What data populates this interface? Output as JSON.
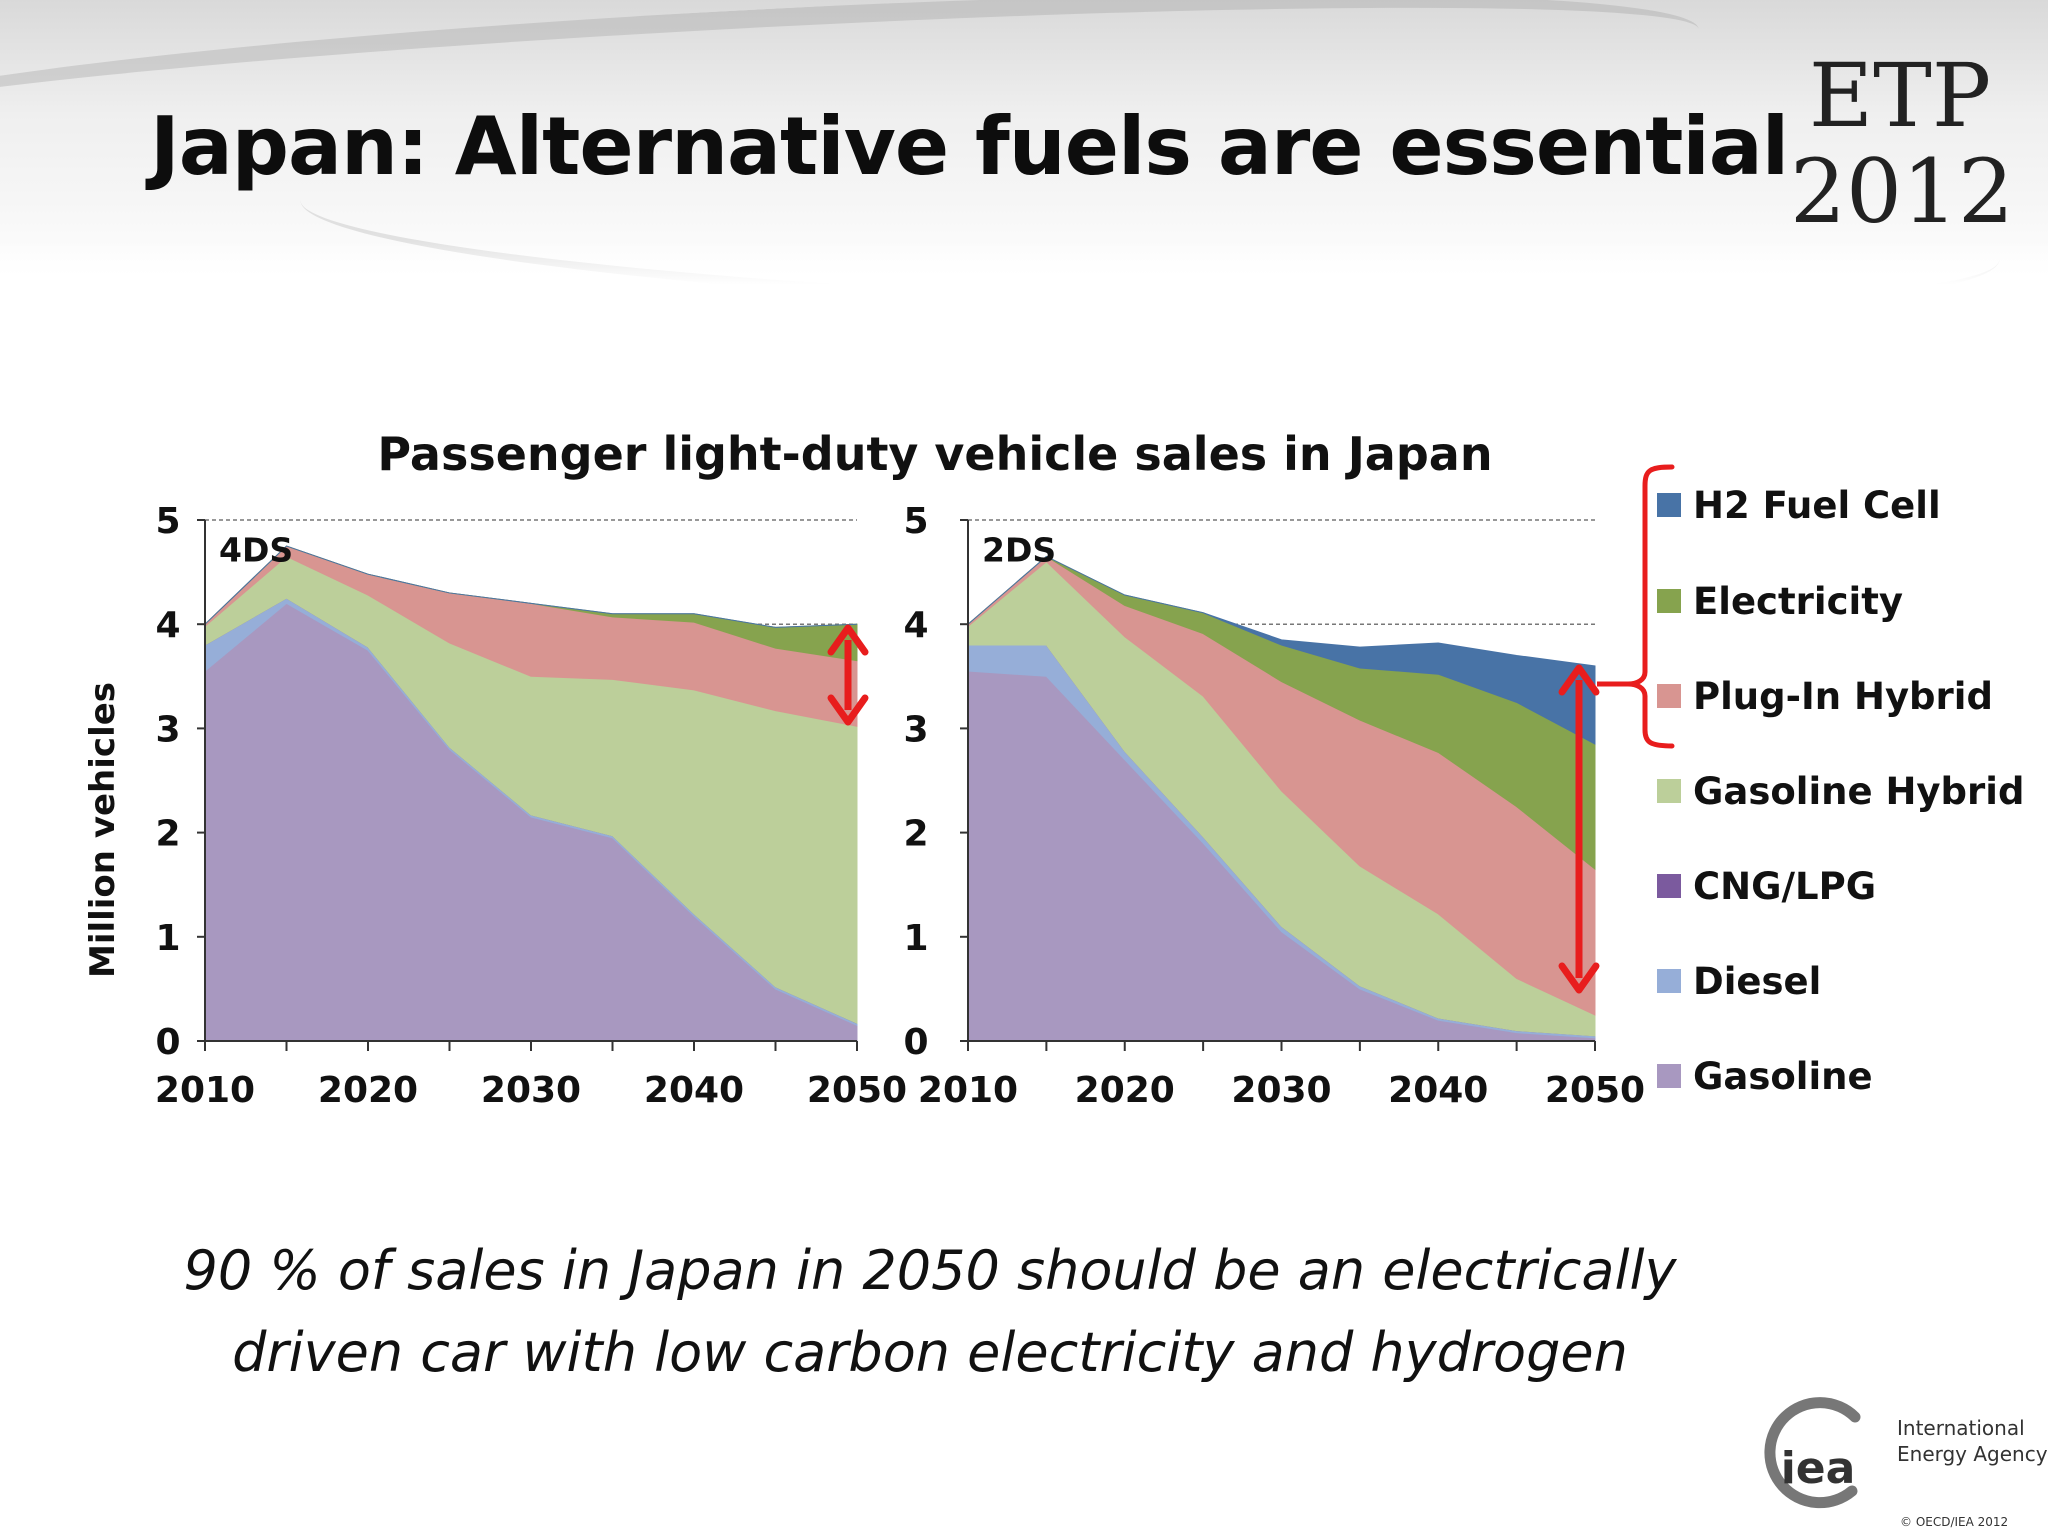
{
  "slide": {
    "title": "Japan: Alternative fuels are essential",
    "etp_line1": "ETP",
    "etp_line2": "2012",
    "subtitle_line1": "90 % of sales in Japan in 2050 should be an electrically",
    "subtitle_line2": "driven car with low carbon electricity and hydrogen",
    "logo_text": "iea",
    "agency_line1": "International",
    "agency_line2": "Energy Agency",
    "copyright": "© OECD/IEA 2012"
  },
  "colors": {
    "Gasoline": "#a898c0",
    "Diesel": "#96aed8",
    "CNG/LPG": "#7b5a9e",
    "Gasoline Hybrid": "#bccf9a",
    "Plug-In Hybrid": "#d89591",
    "Electricity": "#86a34e",
    "H2 Fuel Cell": "#4873a6",
    "arrow": "#e81d1d"
  },
  "chart_data": {
    "type": "area",
    "title": "Passenger light-duty vehicle sales in Japan",
    "ylabel": "Million vehicles",
    "xlabel": "",
    "ylim": [
      0,
      5
    ],
    "xlim": [
      2010,
      2050
    ],
    "yticks": [
      0,
      1,
      2,
      3,
      4,
      5
    ],
    "xticks": [
      2010,
      2020,
      2030,
      2040,
      2050
    ],
    "stacked": true,
    "legend_position": "right",
    "legend": [
      "H2 Fuel Cell",
      "Electricity",
      "Plug-In Hybrid",
      "Gasoline Hybrid",
      "CNG/LPG",
      "Diesel",
      "Gasoline"
    ],
    "panels": [
      {
        "label": "4DS",
        "x": [
          2010,
          2015,
          2020,
          2025,
          2030,
          2035,
          2040,
          2045,
          2050
        ],
        "series": [
          {
            "name": "Gasoline",
            "values": [
              3.55,
              4.2,
              3.75,
              2.8,
              2.15,
              1.95,
              1.2,
              0.5,
              0.15
            ]
          },
          {
            "name": "Diesel",
            "values": [
              0.25,
              0.05,
              0.03,
              0.02,
              0.02,
              0.02,
              0.02,
              0.02,
              0.02
            ]
          },
          {
            "name": "CNG/LPG",
            "values": [
              0,
              0,
              0,
              0,
              0,
              0,
              0,
              0,
              0
            ]
          },
          {
            "name": "Gasoline Hybrid",
            "values": [
              0.18,
              0.4,
              0.5,
              1.0,
              1.33,
              1.5,
              2.15,
              2.65,
              2.85
            ]
          },
          {
            "name": "Plug-In Hybrid",
            "values": [
              0.02,
              0.1,
              0.2,
              0.48,
              0.7,
              0.6,
              0.65,
              0.6,
              0.63
            ]
          },
          {
            "name": "Electricity",
            "values": [
              0,
              0,
              0,
              0,
              0,
              0.03,
              0.08,
              0.2,
              0.35
            ]
          },
          {
            "name": "H2 Fuel Cell",
            "values": [
              0,
              0,
              0,
              0,
              0,
              0,
              0,
              0,
              0
            ]
          }
        ]
      },
      {
        "label": "2DS",
        "x": [
          2010,
          2015,
          2020,
          2025,
          2030,
          2035,
          2040,
          2045,
          2050
        ],
        "series": [
          {
            "name": "Gasoline",
            "values": [
              3.55,
              3.5,
              2.7,
              1.9,
              1.05,
              0.5,
              0.2,
              0.08,
              0.03
            ]
          },
          {
            "name": "Diesel",
            "values": [
              0.25,
              0.3,
              0.08,
              0.06,
              0.05,
              0.03,
              0.02,
              0.02,
              0.02
            ]
          },
          {
            "name": "CNG/LPG",
            "values": [
              0,
              0,
              0,
              0,
              0,
              0,
              0,
              0,
              0
            ]
          },
          {
            "name": "Gasoline Hybrid",
            "values": [
              0.18,
              0.8,
              1.1,
              1.35,
              1.3,
              1.15,
              1.0,
              0.5,
              0.2
            ]
          },
          {
            "name": "Plug-In Hybrid",
            "values": [
              0.02,
              0.05,
              0.3,
              0.6,
              1.05,
              1.4,
              1.55,
              1.65,
              1.4
            ]
          },
          {
            "name": "Electricity",
            "values": [
              0,
              0,
              0.1,
              0.2,
              0.35,
              0.5,
              0.75,
              1.0,
              1.2
            ]
          },
          {
            "name": "H2 Fuel Cell",
            "values": [
              0,
              0,
              0,
              0,
              0.05,
              0.2,
              0.3,
              0.45,
              0.75
            ]
          }
        ]
      }
    ]
  }
}
